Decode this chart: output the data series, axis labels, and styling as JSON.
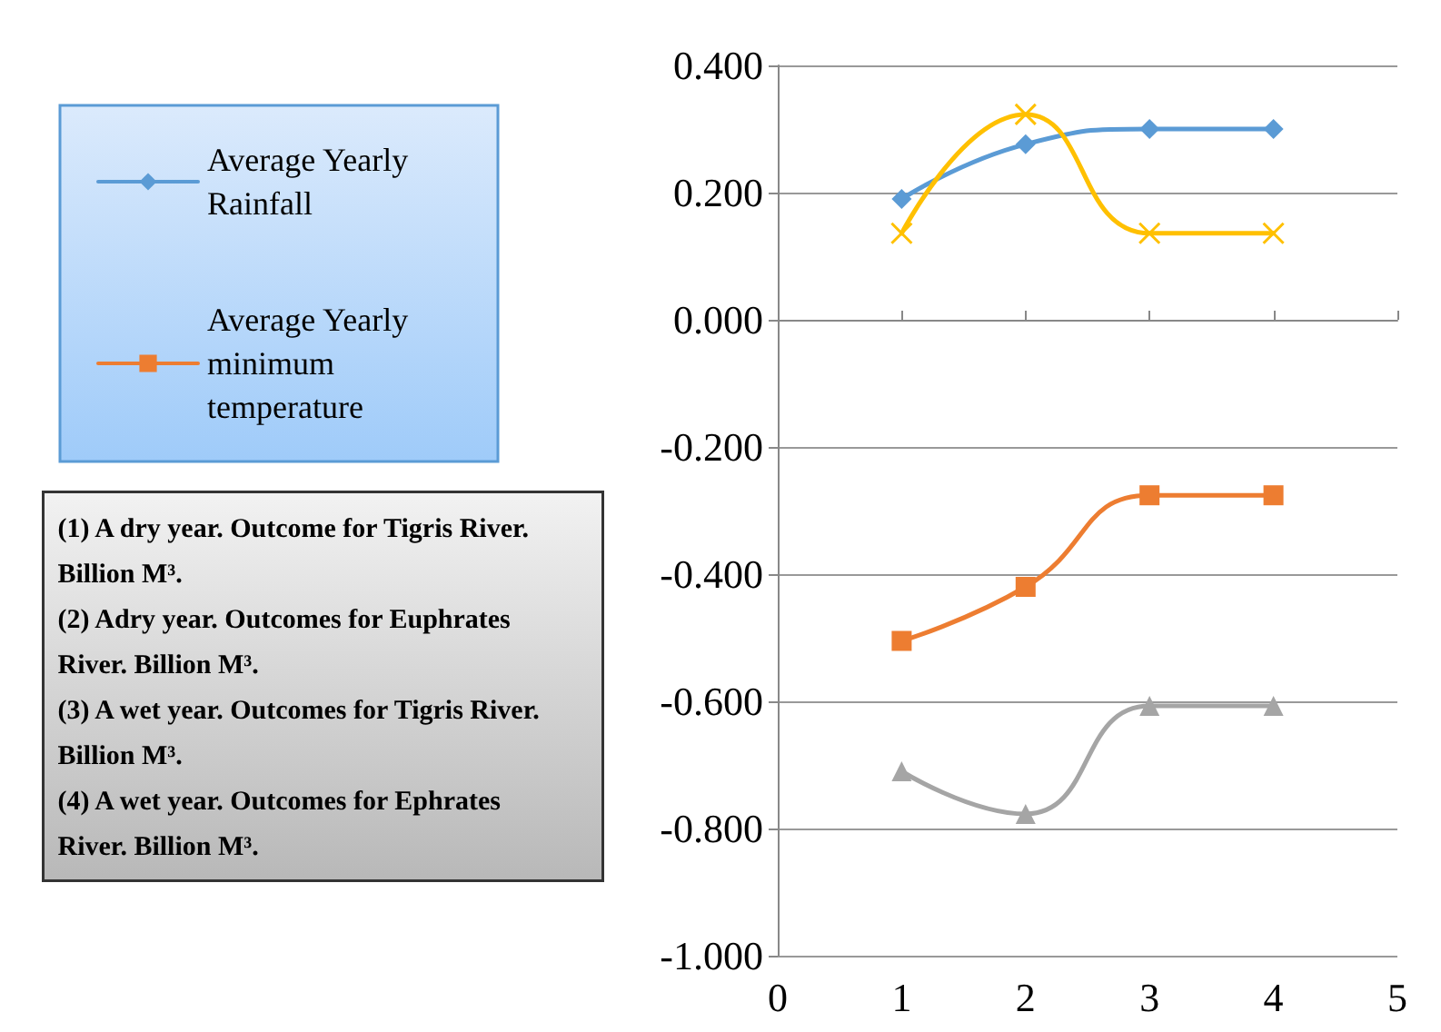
{
  "chart_data": {
    "type": "line",
    "x": [
      1,
      2,
      3,
      4
    ],
    "series": [
      {
        "name": "Average Yearly Rainfall",
        "color": "#5b9bd5",
        "marker": "diamond",
        "values": [
          0.19,
          0.276,
          0.3,
          0.3
        ]
      },
      {
        "name": "Average Yearly minimum temperature",
        "color": "#ed7d31",
        "marker": "square",
        "values": [
          -0.505,
          -0.42,
          -0.276,
          -0.276
        ]
      },
      {
        "color": "#a5a5a5",
        "marker": "triangle",
        "values": [
          -0.71,
          -0.777,
          -0.607,
          -0.607
        ]
      },
      {
        "color": "#ffc000",
        "marker": "cross",
        "values": [
          0.136,
          0.323,
          0.136,
          0.136
        ]
      }
    ],
    "xlim": [
      0,
      5
    ],
    "xticks": [
      0,
      1,
      2,
      3,
      4,
      5
    ],
    "ylim": [
      -1.0,
      0.4
    ],
    "yticks": [
      {
        "value": -1.0,
        "label": "-1.000"
      },
      {
        "value": -0.8,
        "label": "-0.800"
      },
      {
        "value": -0.6,
        "label": "-0.600"
      },
      {
        "value": -0.4,
        "label": "-0.400"
      },
      {
        "value": -0.2,
        "label": "-0.200"
      },
      {
        "value": 0,
        "label": "0.000"
      },
      {
        "value": 0.2,
        "label": "0.200"
      },
      {
        "value": 0.4,
        "label": "0.400"
      }
    ],
    "grid": "y",
    "legend": "left",
    "line_style": "solid",
    "annotations": [
      "(1) A dry year. Outcome for Tigris River. Billion M³.",
      "(2) Adry year. Outcomes for Euphrates River. Billion M³.",
      "(3) A wet year. Outcomes for Tigris River. Billion M³.",
      "(4) A wet year. Outcomes for Ephrates River. Billion M³."
    ]
  }
}
